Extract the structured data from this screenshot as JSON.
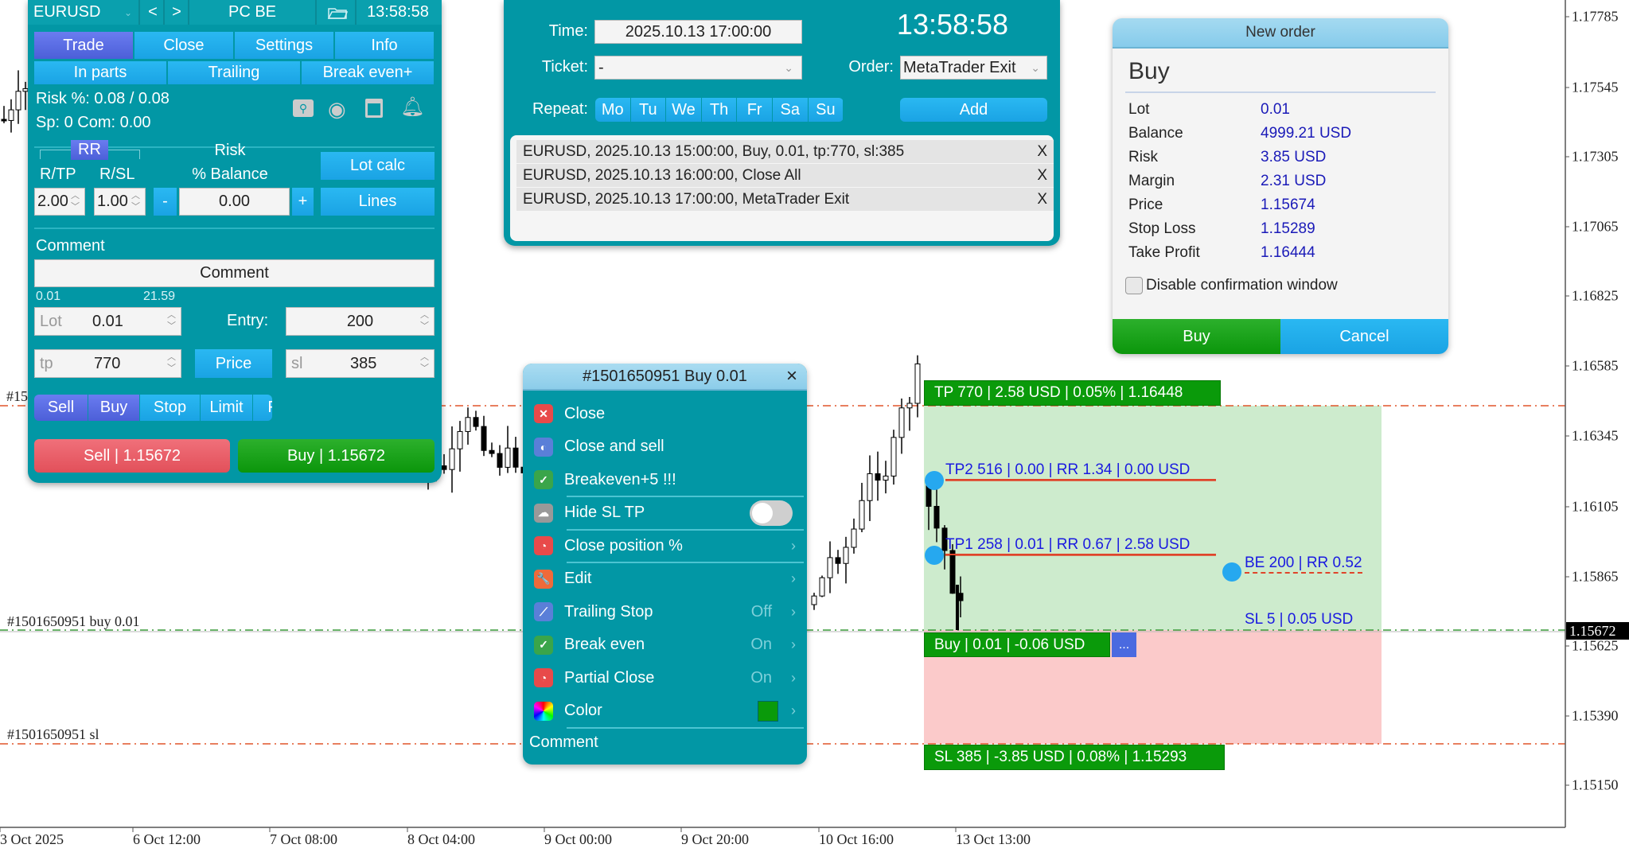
{
  "chart": {
    "price_ticks": [
      "1.17785",
      "1.17545",
      "1.17305",
      "1.17065",
      "1.16825",
      "1.16585",
      "1.16345",
      "1.16105",
      "1.15865",
      "1.15625",
      "1.15390",
      "1.15150"
    ],
    "current_price": "1.15672",
    "time_ticks": [
      "3 Oct 2025",
      "6 Oct 12:00",
      "7 Oct 08:00",
      "8 Oct 04:00",
      "9 Oct 00:00",
      "9 Oct 20:00",
      "10 Oct 16:00",
      "13 Oct 13:00"
    ],
    "order_label": "#1501650951 buy 0.01",
    "sl_label": "#1501650951 sl",
    "tp_label_partial": "#15",
    "tp_tag": "TP 770 | 2.58 USD | 0.05% | 1.16448",
    "buy_tag": "Buy | 0.01 | -0.06 USD",
    "more_button": "...",
    "sl_tag": "SL 385 | -3.85 USD | 0.08% | 1.15293",
    "tp2_label": "TP2 516 | 0.00 | RR 1.34 | 0.00 USD",
    "tp1_label": "TP1 258 | 0.01 | RR 0.67 | 2.58 USD",
    "be_label": "BE 200 | RR 0.52",
    "sl5_label": "SL 5 | 0.05 USD",
    "colors": {
      "tp_zone": "#cdebcd",
      "sl_zone": "#fbcaca",
      "tag": "#0a9a0a",
      "line": "#e0552a"
    }
  },
  "panel": {
    "symbol": "EURUSD",
    "prev": "<",
    "next": ">",
    "profile": "PC BE",
    "clock": "13:58:58",
    "tabs": [
      "Trade",
      "Close",
      "Settings",
      "Info"
    ],
    "subtabs": [
      "In parts",
      "Trailing",
      "Break even+"
    ],
    "risk_text": "Risk %: 0.08 /  0.08",
    "spread_text": "Sp: 0  Com: 0.00",
    "icons": [
      "search-icon",
      "eye-icon",
      "calendar-icon",
      "bell-plus-icon"
    ],
    "rr_label": "RR",
    "rtp_label": "R/TP",
    "rsl_label": "R/SL",
    "rtp_value": "2.00",
    "rsl_value": "1.00",
    "risk_label": "Risk",
    "balance_label": "% Balance",
    "minus": "-",
    "plus": "+",
    "risk_value": "0.00",
    "lot_calc": "Lot calc",
    "lines": "Lines",
    "comment_label": "Comment",
    "comment_value": "Comment",
    "lot_min": "0.01",
    "lot_max": "21.59",
    "lot_label": "Lot",
    "lot_value": "0.01",
    "entry_label": "Entry:",
    "entry_value": "200",
    "tp_label": "tp",
    "tp_value": "770",
    "price_button": "Price",
    "sl_label": "sl",
    "sl_value": "385",
    "order_types": [
      "Sell",
      "Buy",
      "Stop",
      "Limit",
      "Fn"
    ],
    "sell_button": "Sell  | 1.15672",
    "buy_button": "Buy  | 1.15672"
  },
  "scheduler": {
    "time_label": "Time:",
    "time_value": "2025.10.13 17:00:00",
    "clock": "13:58:58",
    "ticket_label": "Ticket:",
    "ticket_value": "-",
    "order_label": "Order:",
    "order_value": "MetaTrader Exit",
    "repeat_label": "Repeat:",
    "days": [
      "Mo",
      "Tu",
      "We",
      "Th",
      "Fr",
      "Sa",
      "Su"
    ],
    "add": "Add",
    "rows": [
      "EURUSD, 2025.10.13 15:00:00, Buy, 0.01, tp:770, sl:385",
      "EURUSD, 2025.10.13 16:00:00, Close All",
      "EURUSD, 2025.10.13 17:00:00, MetaTrader Exit"
    ],
    "delete": "X"
  },
  "new_order": {
    "title": "New order",
    "side": "Buy",
    "rows": [
      {
        "label": "Lot",
        "value": "0.01"
      },
      {
        "label": "Balance",
        "value": "4999.21 USD"
      },
      {
        "label": "Risk",
        "value": "3.85 USD"
      },
      {
        "label": "Margin",
        "value": "2.31 USD"
      },
      {
        "label": "Price",
        "value": "1.15674"
      },
      {
        "label": "Stop Loss",
        "value": "1.15289"
      },
      {
        "label": "Take Profit",
        "value": "1.16444"
      }
    ],
    "disable_confirm": "Disable confirmation window",
    "disable_confirm_checked": false,
    "buy": "Buy",
    "cancel": "Cancel"
  },
  "context_menu": {
    "title": "#1501650951 Buy 0.01",
    "close": "×",
    "items": [
      {
        "label": "Close",
        "icon": "close-icon",
        "color": "#e84a4a",
        "glyph": "✕"
      },
      {
        "label": "Close and sell",
        "icon": "reverse-icon",
        "color": "#5a7fd8",
        "glyph": "◐"
      },
      {
        "label": "Breakeven+5 !!!",
        "icon": "shield-check-icon",
        "color": "#3aa54a",
        "glyph": "✓"
      },
      {
        "label": "Hide SL TP",
        "icon": "cloud-icon",
        "color": "#999999",
        "glyph": "☁",
        "toggle": false
      },
      {
        "label": "Close position %",
        "icon": "pie-icon",
        "color": "#e84a4a",
        "glyph": "◔",
        "chevron": true
      },
      {
        "label": "Edit",
        "icon": "wrench-icon",
        "color": "#ef6a3a",
        "glyph": "🔧",
        "chevron": true
      },
      {
        "label": "Trailing Stop",
        "icon": "trailing-icon",
        "color": "#5a7fd8",
        "glyph": "⟋",
        "value": "Off",
        "chevron": true
      },
      {
        "label": "Break even",
        "icon": "shield-check-icon",
        "color": "#3aa54a",
        "glyph": "✓",
        "value": "On",
        "chevron": true
      },
      {
        "label": "Partial Close",
        "icon": "pie-icon",
        "color": "#e84a4a",
        "glyph": "◔",
        "value": "On",
        "chevron": true
      },
      {
        "label": "Color",
        "icon": "color-wheel-icon",
        "color": "conic",
        "glyph": "",
        "swatch": "#0a9a0a",
        "chevron": true
      }
    ],
    "comment": "Comment"
  }
}
